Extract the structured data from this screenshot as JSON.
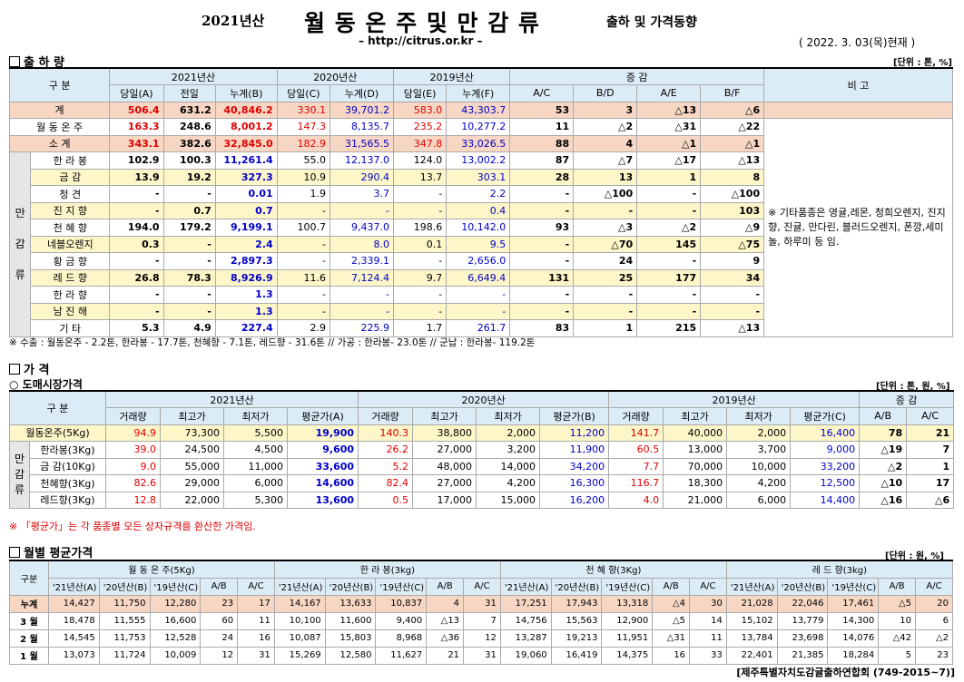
{
  "header": {
    "year": "2021년산",
    "title": "월 동 온 주 및 만 감 류",
    "subtitle": "출하 및 가격동향",
    "url": "– http://citrus.or.kr –",
    "date": "( 2022. 3. 03(목)현재 )"
  },
  "s1": {
    "title": "출 하 량",
    "unit": "[단위 : 톤, %]",
    "h_gubun": "구    분",
    "h_2021": "2021년산",
    "h_2020": "2020년산",
    "h_2019": "2019년산",
    "h_jg": "증    감",
    "h_bigo": "비 고",
    "sub": [
      "당일(A)",
      "전일",
      "누계(B)",
      "당일(C)",
      "누계(D)",
      "당일(E)",
      "누계(F)",
      "A/C",
      "B/D",
      "A/E",
      "B/F"
    ],
    "side": "만\n\n감\n\n류",
    "remark": "※ 기타품종은 영귤,레몬, 청희오렌지, 진지향, 진귤, 만다린, 블러드오렌지, 폰깡,세미놀, 하루미 등 임.",
    "rows": [
      [
        "계",
        "506.4",
        "631.2",
        "40,846.2",
        "330.1",
        "39,701.2",
        "583.0",
        "43,303.7",
        "53",
        "3",
        "△13",
        "△6"
      ],
      [
        "월 동 온 주",
        "163.3",
        "248.6",
        "8,001.2",
        "147.3",
        "8,135.7",
        "235.2",
        "10,277.2",
        "11",
        "△2",
        "△31",
        "△22"
      ],
      [
        "소    계",
        "343.1",
        "382.6",
        "32,845.0",
        "182.9",
        "31,565.5",
        "347.8",
        "33,026.5",
        "88",
        "4",
        "△1",
        "△1"
      ],
      [
        "한 라 봉",
        "102.9",
        "100.3",
        "11,261.4",
        "55.0",
        "12,137.0",
        "124.0",
        "13,002.2",
        "87",
        "△7",
        "△17",
        "△13"
      ],
      [
        "금    감",
        "13.9",
        "19.2",
        "327.3",
        "10.9",
        "290.4",
        "13.7",
        "303.1",
        "28",
        "13",
        "1",
        "8"
      ],
      [
        "청    견",
        "-",
        "-",
        "0.01",
        "1.9",
        "3.7",
        "-",
        "2.2",
        "-",
        "△100",
        "-",
        "△100"
      ],
      [
        "진 지 향",
        "-",
        "0.7",
        "0.7",
        "-",
        "-",
        "-",
        "0.4",
        "-",
        "-",
        "-",
        "103"
      ],
      [
        "천 혜 향",
        "194.0",
        "179.2",
        "9,199.1",
        "100.7",
        "9,437.0",
        "198.6",
        "10,142.0",
        "93",
        "△3",
        "△2",
        "△9"
      ],
      [
        "네블오렌지",
        "0.3",
        "-",
        "2.4",
        "-",
        "8.0",
        "0.1",
        "9.5",
        "-",
        "△70",
        "145",
        "△75"
      ],
      [
        "황 금 향",
        "-",
        "-",
        "2,897.3",
        "-",
        "2,339.1",
        "-",
        "2,656.0",
        "-",
        "24",
        "-",
        "9"
      ],
      [
        "레 드 향",
        "26.8",
        "78.3",
        "8,926.9",
        "11.6",
        "7,124.4",
        "9.7",
        "6,649.4",
        "131",
        "25",
        "177",
        "34"
      ],
      [
        "한 라 향",
        "-",
        "-",
        "1.3",
        "-",
        "-",
        "-",
        "-",
        "-",
        "-",
        "-",
        "-"
      ],
      [
        "남 진 해",
        "-",
        "-",
        "1.3",
        "-",
        "-",
        "-",
        "-",
        "-",
        "-",
        "-",
        "-"
      ],
      [
        "기    타",
        "5.3",
        "4.9",
        "227.4",
        "2.9",
        "225.9",
        "1.7",
        "261.7",
        "83",
        "1",
        "215",
        "△13"
      ]
    ],
    "note": "※ 수출 :  월동온주 - 2.2톤, 한라봉 - 17.7톤,  천혜향 - 7.1톤,  레드향 - 31.6톤 // 가공 : 한라봉- 23.0톤 // 군납 : 한라봉- 119.2톤"
  },
  "s2": {
    "title": "가    격",
    "subtitle": "○ 도매시장가격",
    "unit": "[단위 : 톤, 원, %]",
    "h_gubun": "구    분",
    "h_2021": "2021년산",
    "h_2020": "2020년산",
    "h_2019": "2019년산",
    "h_jg": "증    감",
    "sub": [
      "거래량",
      "최고가",
      "최저가",
      "평균가(A)",
      "거래량",
      "최고가",
      "최저가",
      "평균가(B)",
      "거래량",
      "최고가",
      "최저가",
      "평균가(C)",
      "A/B",
      "A/C"
    ],
    "side": "만\n감\n류",
    "rows": [
      [
        "월동온주(5Kg)",
        "94.9",
        "73,300",
        "5,500",
        "19,900",
        "140.3",
        "38,800",
        "2,000",
        "11,200",
        "141.7",
        "40,000",
        "2,000",
        "16,400",
        "78",
        "21"
      ],
      [
        "한라봉(3Kg)",
        "39.0",
        "24,500",
        "4,500",
        "9,600",
        "26.2",
        "27,000",
        "3,200",
        "11,900",
        "60.5",
        "13,000",
        "3,700",
        "9,000",
        "△19",
        "7"
      ],
      [
        "금  감(10Kg)",
        "9.0",
        "55,000",
        "11,000",
        "33,600",
        "5.2",
        "48,000",
        "14,000",
        "34,200",
        "7.7",
        "70,000",
        "10,000",
        "33,200",
        "△2",
        "1"
      ],
      [
        "천혜향(3Kg)",
        "82.6",
        "29,000",
        "6,000",
        "14,600",
        "82.4",
        "27,000",
        "4,200",
        "16,300",
        "116.7",
        "18,300",
        "4,200",
        "12,500",
        "△10",
        "17"
      ],
      [
        "레드향(3Kg)",
        "12.8",
        "22,000",
        "5,300",
        "13,600",
        "0.5",
        "17,000",
        "15,000",
        "16,200",
        "4.0",
        "21,000",
        "6,000",
        "14,400",
        "△16",
        "△6"
      ]
    ],
    "note": "※ 「평균가」는 각 품종별 모든 상자규격를 환산한 가격임."
  },
  "s3": {
    "title": "월별 평균가격",
    "unit": "[단위 : 원, %]",
    "h_gubun": "구분",
    "groups": [
      "월 동 온 주(5Kg)",
      "한  라  봉(3kg)",
      "천  혜  향(3Kg)",
      "레  드  향(3kg)"
    ],
    "sub": [
      "'21년산(A)",
      "'20년산(B)",
      "'19년산(C)",
      "A/B",
      "A/C"
    ],
    "rows": [
      [
        "누계",
        "14,427",
        "11,750",
        "12,280",
        "23",
        "17",
        "14,167",
        "13,633",
        "10,837",
        "4",
        "31",
        "17,251",
        "17,943",
        "13,318",
        "△4",
        "30",
        "21,028",
        "22,046",
        "17,461",
        "△5",
        "20"
      ],
      [
        "3 월",
        "18,478",
        "11,555",
        "16,600",
        "60",
        "11",
        "10,100",
        "11,600",
        "9,400",
        "△13",
        "7",
        "14,756",
        "15,563",
        "12,900",
        "△5",
        "14",
        "15,102",
        "13,779",
        "14,300",
        "10",
        "6"
      ],
      [
        "2 월",
        "14,545",
        "11,753",
        "12,528",
        "24",
        "16",
        "10,087",
        "15,803",
        "8,968",
        "△36",
        "12",
        "13,287",
        "19,213",
        "11,951",
        "△31",
        "11",
        "13,784",
        "23,698",
        "14,076",
        "△42",
        "△2"
      ],
      [
        "1 월",
        "13,073",
        "11,724",
        "10,009",
        "12",
        "31",
        "15,269",
        "12,580",
        "11,627",
        "21",
        "31",
        "19,060",
        "16,419",
        "14,375",
        "16",
        "33",
        "22,401",
        "21,385",
        "18,284",
        "5",
        "23"
      ]
    ]
  },
  "footer": "[제주특별자치도감귤출하연합회 (749-2015~7)]"
}
